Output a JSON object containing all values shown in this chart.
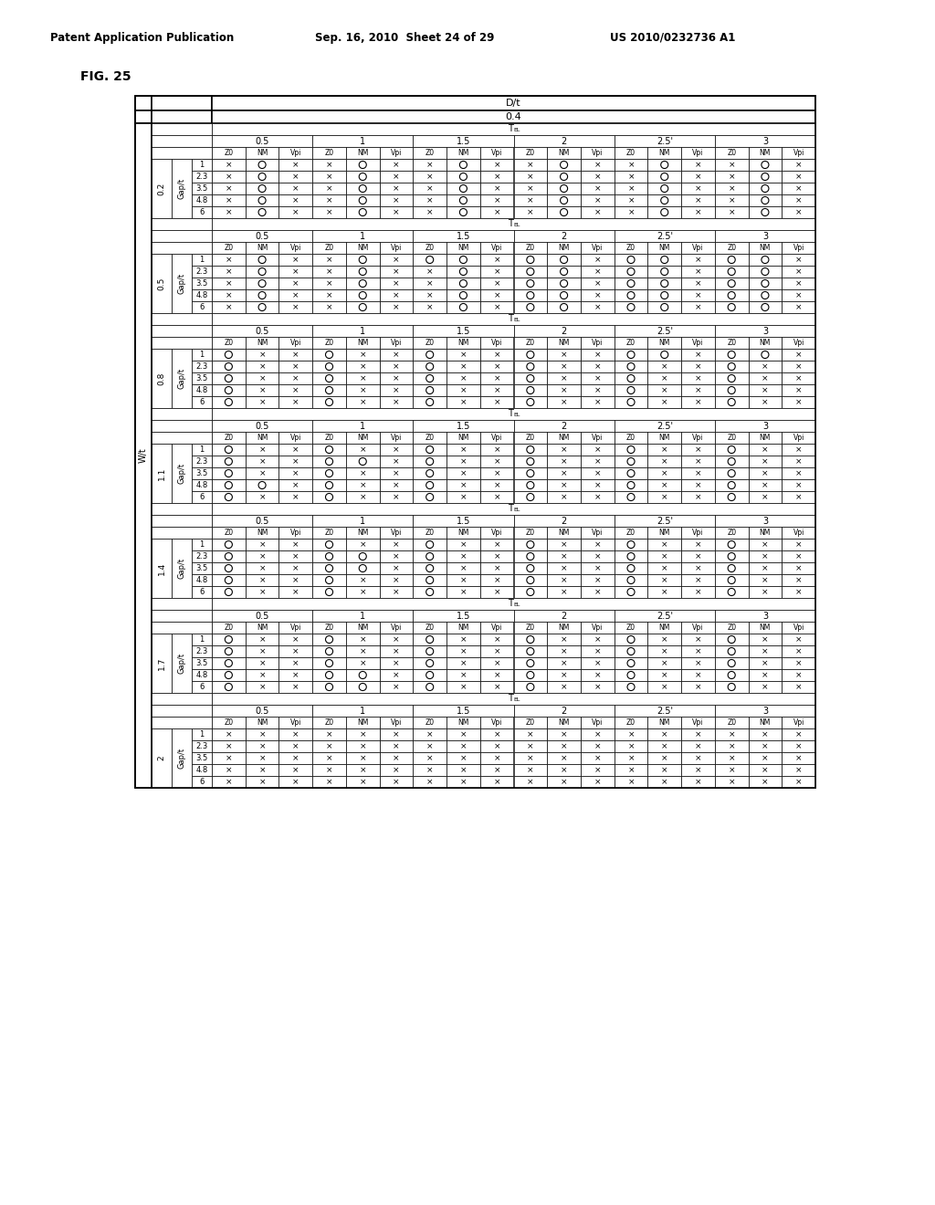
{
  "title_line1": "Patent Application Publication",
  "title_line2": "Sep. 16, 2010  Sheet 24 of 29",
  "title_line3": "US 2010/0232736 A1",
  "fig_label": "FIG. 25",
  "tel_vals": [
    "0.5",
    "1",
    "1.5",
    "2",
    "2.5",
    "3"
  ],
  "gap_vals": [
    "1",
    "2.3",
    "3.5",
    "4.8",
    "6"
  ],
  "W_vals": [
    "0.2",
    "0.5",
    "0.8",
    "1.1",
    "1.4",
    "1.7",
    "2"
  ],
  "table_data": {
    "0.2": {
      "1": [
        "x",
        "O",
        "x",
        "x",
        "O",
        "x",
        "x",
        "O",
        "x",
        "x",
        "O",
        "x",
        "x",
        "O",
        "x",
        "x",
        "O",
        "x"
      ],
      "2.3": [
        "x",
        "O",
        "x",
        "x",
        "O",
        "x",
        "x",
        "O",
        "x",
        "x",
        "O",
        "x",
        "x",
        "O",
        "x",
        "x",
        "O",
        "x"
      ],
      "3.5": [
        "x",
        "O",
        "x",
        "x",
        "O",
        "x",
        "x",
        "O",
        "x",
        "x",
        "O",
        "x",
        "x",
        "O",
        "x",
        "x",
        "O",
        "x"
      ],
      "4.8": [
        "x",
        "O",
        "x",
        "x",
        "O",
        "x",
        "x",
        "O",
        "x",
        "x",
        "O",
        "x",
        "x",
        "O",
        "x",
        "x",
        "O",
        "x"
      ],
      "6": [
        "x",
        "O",
        "x",
        "x",
        "O",
        "x",
        "x",
        "O",
        "x",
        "x",
        "O",
        "x",
        "x",
        "O",
        "x",
        "x",
        "O",
        "x"
      ]
    },
    "0.5": {
      "1": [
        "x",
        "O",
        "x",
        "x",
        "O",
        "x",
        "O",
        "O",
        "x",
        "O",
        "O",
        "x",
        "O",
        "O",
        "x",
        "O",
        "O",
        "x"
      ],
      "2.3": [
        "x",
        "O",
        "x",
        "x",
        "O",
        "x",
        "x",
        "O",
        "x",
        "O",
        "O",
        "x",
        "O",
        "O",
        "x",
        "O",
        "O",
        "x"
      ],
      "3.5": [
        "x",
        "O",
        "x",
        "x",
        "O",
        "x",
        "x",
        "O",
        "x",
        "O",
        "O",
        "x",
        "O",
        "O",
        "x",
        "O",
        "O",
        "x"
      ],
      "4.8": [
        "x",
        "O",
        "x",
        "x",
        "O",
        "x",
        "x",
        "O",
        "x",
        "O",
        "O",
        "x",
        "O",
        "O",
        "x",
        "O",
        "O",
        "x"
      ],
      "6": [
        "x",
        "O",
        "x",
        "x",
        "O",
        "x",
        "x",
        "O",
        "x",
        "O",
        "O",
        "x",
        "O",
        "O",
        "x",
        "O",
        "O",
        "x"
      ]
    },
    "0.8": {
      "1": [
        "O",
        "x",
        "x",
        "O",
        "x",
        "x",
        "O",
        "x",
        "x",
        "O",
        "x",
        "x",
        "O",
        "O",
        "x",
        "O",
        "O",
        "x"
      ],
      "2.3": [
        "O",
        "x",
        "x",
        "O",
        "x",
        "x",
        "O",
        "x",
        "x",
        "O",
        "x",
        "x",
        "O",
        "x",
        "x",
        "O",
        "x",
        "x"
      ],
      "3.5": [
        "O",
        "x",
        "x",
        "O",
        "x",
        "x",
        "O",
        "x",
        "x",
        "O",
        "x",
        "x",
        "O",
        "x",
        "x",
        "O",
        "x",
        "x"
      ],
      "4.8": [
        "O",
        "x",
        "x",
        "O",
        "x",
        "x",
        "O",
        "x",
        "x",
        "O",
        "x",
        "x",
        "O",
        "x",
        "x",
        "O",
        "x",
        "x"
      ],
      "6": [
        "O",
        "x",
        "x",
        "O",
        "x",
        "x",
        "O",
        "x",
        "x",
        "O",
        "x",
        "x",
        "O",
        "x",
        "x",
        "O",
        "x",
        "x"
      ]
    },
    "1.1": {
      "1": [
        "O",
        "x",
        "x",
        "O",
        "x",
        "x",
        "O",
        "x",
        "x",
        "O",
        "x",
        "x",
        "O",
        "x",
        "x",
        "O",
        "x",
        "x"
      ],
      "2.3": [
        "O",
        "x",
        "x",
        "O",
        "O",
        "x",
        "O",
        "x",
        "x",
        "O",
        "x",
        "x",
        "O",
        "x",
        "x",
        "O",
        "x",
        "x"
      ],
      "3.5": [
        "O",
        "x",
        "x",
        "O",
        "x",
        "x",
        "O",
        "x",
        "x",
        "O",
        "x",
        "x",
        "O",
        "x",
        "x",
        "O",
        "x",
        "x"
      ],
      "4.8": [
        "O",
        "O",
        "x",
        "O",
        "x",
        "x",
        "O",
        "x",
        "x",
        "O",
        "x",
        "x",
        "O",
        "x",
        "x",
        "O",
        "x",
        "x"
      ],
      "6": [
        "O",
        "x",
        "x",
        "O",
        "x",
        "x",
        "O",
        "x",
        "x",
        "O",
        "x",
        "x",
        "O",
        "x",
        "x",
        "O",
        "x",
        "x"
      ]
    },
    "1.4": {
      "1": [
        "O",
        "x",
        "x",
        "O",
        "x",
        "x",
        "O",
        "x",
        "x",
        "O",
        "x",
        "x",
        "O",
        "x",
        "x",
        "O",
        "x",
        "x"
      ],
      "2.3": [
        "O",
        "x",
        "x",
        "O",
        "O",
        "x",
        "O",
        "x",
        "x",
        "O",
        "x",
        "x",
        "O",
        "x",
        "x",
        "O",
        "x",
        "x"
      ],
      "3.5": [
        "O",
        "x",
        "x",
        "O",
        "O",
        "x",
        "O",
        "x",
        "x",
        "O",
        "x",
        "x",
        "O",
        "x",
        "x",
        "O",
        "x",
        "x"
      ],
      "4.8": [
        "O",
        "x",
        "x",
        "O",
        "x",
        "x",
        "O",
        "x",
        "x",
        "O",
        "x",
        "x",
        "O",
        "x",
        "x",
        "O",
        "x",
        "x"
      ],
      "6": [
        "O",
        "x",
        "x",
        "O",
        "x",
        "x",
        "O",
        "x",
        "x",
        "O",
        "x",
        "x",
        "O",
        "x",
        "x",
        "O",
        "x",
        "x"
      ]
    },
    "1.7": {
      "1": [
        "O",
        "x",
        "x",
        "O",
        "x",
        "x",
        "O",
        "x",
        "x",
        "O",
        "x",
        "x",
        "O",
        "x",
        "x",
        "O",
        "x",
        "x"
      ],
      "2.3": [
        "O",
        "x",
        "x",
        "O",
        "x",
        "x",
        "O",
        "x",
        "x",
        "O",
        "x",
        "x",
        "O",
        "x",
        "x",
        "O",
        "x",
        "x"
      ],
      "3.5": [
        "O",
        "x",
        "x",
        "O",
        "x",
        "x",
        "O",
        "x",
        "x",
        "O",
        "x",
        "x",
        "O",
        "x",
        "x",
        "O",
        "x",
        "x"
      ],
      "4.8": [
        "O",
        "x",
        "x",
        "O",
        "O",
        "x",
        "O",
        "x",
        "x",
        "O",
        "x",
        "x",
        "O",
        "x",
        "x",
        "O",
        "x",
        "x"
      ],
      "6": [
        "O",
        "x",
        "x",
        "O",
        "O",
        "x",
        "O",
        "x",
        "x",
        "O",
        "x",
        "x",
        "O",
        "x",
        "x",
        "O",
        "x",
        "x"
      ]
    },
    "2": {
      "1": [
        "x",
        "x",
        "x",
        "x",
        "x",
        "x",
        "x",
        "x",
        "x",
        "x",
        "x",
        "x",
        "x",
        "x",
        "x",
        "x",
        "x",
        "x"
      ],
      "2.3": [
        "x",
        "x",
        "x",
        "x",
        "x",
        "x",
        "x",
        "x",
        "x",
        "x",
        "x",
        "x",
        "x",
        "x",
        "x",
        "x",
        "x",
        "x"
      ],
      "3.5": [
        "x",
        "x",
        "x",
        "x",
        "x",
        "x",
        "x",
        "x",
        "x",
        "x",
        "x",
        "x",
        "x",
        "x",
        "x",
        "x",
        "x",
        "x"
      ],
      "4.8": [
        "x",
        "x",
        "x",
        "x",
        "x",
        "x",
        "x",
        "x",
        "x",
        "x",
        "x",
        "x",
        "x",
        "x",
        "x",
        "x",
        "x",
        "x"
      ],
      "6": [
        "x",
        "x",
        "x",
        "x",
        "x",
        "x",
        "x",
        "x",
        "x",
        "x",
        "x",
        "x",
        "x",
        "x",
        "x",
        "x",
        "x",
        "x"
      ]
    }
  }
}
